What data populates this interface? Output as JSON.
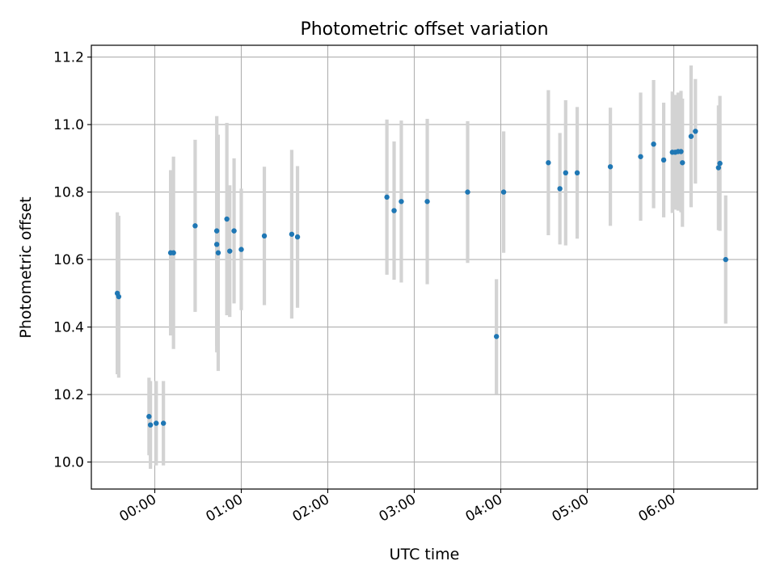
{
  "chart_data": {
    "type": "scatter",
    "title": "Photometric offset variation",
    "xlabel": "UTC time",
    "ylabel": "Photometric offset",
    "x_unit": "UTC hours (HH:MM)",
    "xlim": [
      "-00:44",
      "06:58"
    ],
    "ylim": [
      9.92,
      11.235
    ],
    "x_ticks": [
      "00:00",
      "01:00",
      "02:00",
      "03:00",
      "04:00",
      "05:00",
      "06:00"
    ],
    "y_ticks": [
      "10.0",
      "10.2",
      "10.4",
      "10.6",
      "10.8",
      "11.0",
      "11.2"
    ],
    "grid": true,
    "legend": "none",
    "colors": {
      "point": "#1f77b4",
      "errorbar": "#d3d3d3",
      "grid": "#b0b0b0"
    },
    "series": [
      {
        "points": [
          {
            "x": "-00:26",
            "y": 10.5,
            "err": 0.24
          },
          {
            "x": "-00:25",
            "y": 10.49,
            "err": 0.24
          },
          {
            "x": "-00:04",
            "y": 10.135,
            "err": 0.115
          },
          {
            "x": "-00:03",
            "y": 10.11,
            "err": 0.13
          },
          {
            "x": "00:01",
            "y": 10.115,
            "err": 0.125
          },
          {
            "x": "00:06",
            "y": 10.115,
            "err": 0.125
          },
          {
            "x": "00:11",
            "y": 10.62,
            "err": 0.245
          },
          {
            "x": "00:13",
            "y": 10.62,
            "err": 0.285
          },
          {
            "x": "00:28",
            "y": 10.7,
            "err": 0.255
          },
          {
            "x": "00:43",
            "y": 10.685,
            "err": 0.34
          },
          {
            "x": "00:43",
            "y": 10.645,
            "err": 0.32
          },
          {
            "x": "00:44",
            "y": 10.62,
            "err": 0.35
          },
          {
            "x": "00:50",
            "y": 10.72,
            "err": 0.285
          },
          {
            "x": "00:52",
            "y": 10.625,
            "err": 0.195
          },
          {
            "x": "00:55",
            "y": 10.685,
            "err": 0.215
          },
          {
            "x": "01:00",
            "y": 10.63,
            "err": 0.18
          },
          {
            "x": "01:16",
            "y": 10.67,
            "err": 0.205
          },
          {
            "x": "01:35",
            "y": 10.675,
            "err": 0.25
          },
          {
            "x": "01:39",
            "y": 10.667,
            "err": 0.21
          },
          {
            "x": "02:41",
            "y": 10.785,
            "err": 0.23
          },
          {
            "x": "02:46",
            "y": 10.745,
            "err": 0.205
          },
          {
            "x": "02:51",
            "y": 10.772,
            "err": 0.24
          },
          {
            "x": "03:09",
            "y": 10.772,
            "err": 0.245
          },
          {
            "x": "03:37",
            "y": 10.8,
            "err": 0.21
          },
          {
            "x": "03:57",
            "y": 10.372,
            "err": 0.17
          },
          {
            "x": "04:02",
            "y": 10.8,
            "err": 0.18
          },
          {
            "x": "04:33",
            "y": 10.887,
            "err": 0.215
          },
          {
            "x": "04:41",
            "y": 10.81,
            "err": 0.165
          },
          {
            "x": "04:45",
            "y": 10.857,
            "err": 0.215
          },
          {
            "x": "04:53",
            "y": 10.857,
            "err": 0.195
          },
          {
            "x": "05:16",
            "y": 10.875,
            "err": 0.175
          },
          {
            "x": "05:37",
            "y": 10.905,
            "err": 0.19
          },
          {
            "x": "05:46",
            "y": 10.942,
            "err": 0.19
          },
          {
            "x": "05:53",
            "y": 10.895,
            "err": 0.17
          },
          {
            "x": "05:59",
            "y": 10.918,
            "err": 0.18
          },
          {
            "x": "06:01",
            "y": 10.918,
            "err": 0.17
          },
          {
            "x": "06:03",
            "y": 10.92,
            "err": 0.175
          },
          {
            "x": "06:05",
            "y": 10.92,
            "err": 0.18
          },
          {
            "x": "06:06",
            "y": 10.887,
            "err": 0.19
          },
          {
            "x": "06:12",
            "y": 10.965,
            "err": 0.21
          },
          {
            "x": "06:15",
            "y": 10.98,
            "err": 0.155
          },
          {
            "x": "06:31",
            "y": 10.872,
            "err": 0.185
          },
          {
            "x": "06:32",
            "y": 10.885,
            "err": 0.2
          },
          {
            "x": "06:36",
            "y": 10.6,
            "err": 0.19
          }
        ]
      }
    ]
  }
}
